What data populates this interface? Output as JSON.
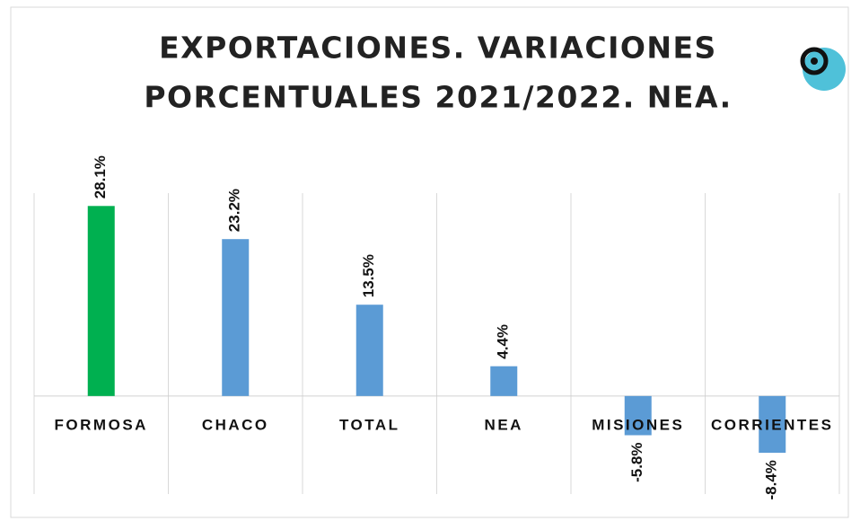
{
  "chart_data": {
    "type": "bar",
    "title_lines": [
      "EXPORTACIONES. VARIACIONES",
      "PORCENTUALES 2021/2022. NEA."
    ],
    "categories": [
      "FORMOSA",
      "CHACO",
      "TOTAL",
      "NEA",
      "MISIONES",
      "CORRIENTES"
    ],
    "values": [
      28.1,
      23.2,
      13.5,
      4.4,
      -5.8,
      -8.4
    ],
    "value_labels": [
      "28.1%",
      "23.2%",
      "13.5%",
      "4.4%",
      "-5.8%",
      "-8.4%"
    ],
    "colors": [
      "#00b050",
      "#5b9bd5",
      "#5b9bd5",
      "#5b9bd5",
      "#5b9bd5",
      "#5b9bd5"
    ],
    "ylim": [
      -14.5,
      30
    ]
  }
}
